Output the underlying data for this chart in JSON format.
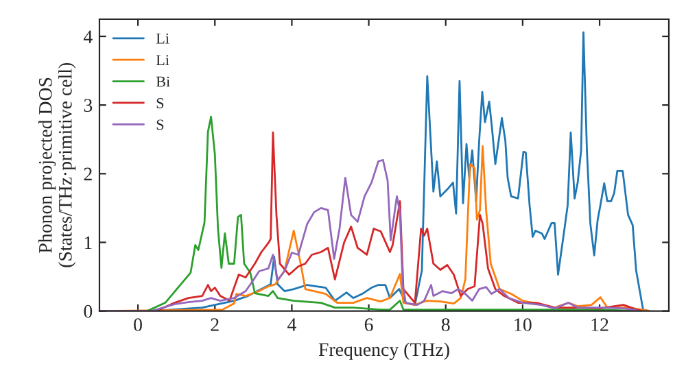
{
  "chart_data": {
    "type": "line",
    "xlabel": "Frequency (THz)",
    "ylabel": "Phonon projected DOS\n(States/THz·primitive cell)",
    "xlim": [
      -1,
      13.8
    ],
    "ylim": [
      0,
      4.25
    ],
    "xticks": [
      0,
      2,
      4,
      6,
      8,
      10,
      12
    ],
    "yticks": [
      0,
      1,
      2,
      3,
      4
    ],
    "legend": "top left",
    "grid": false,
    "series": [
      {
        "name": "Li",
        "color": "#1f77b4",
        "x": [
          -1,
          0.36,
          1.67,
          2.5,
          2.86,
          3.21,
          3.45,
          3.54,
          3.63,
          3.81,
          4.05,
          4.4,
          4.64,
          4.88,
          5.12,
          5.42,
          5.6,
          5.83,
          6.07,
          6.25,
          6.43,
          6.55,
          6.79,
          6.96,
          7.2,
          7.38,
          7.52,
          7.68,
          7.77,
          7.86,
          8.04,
          8.19,
          8.27,
          8.36,
          8.45,
          8.54,
          8.61,
          8.69,
          8.79,
          8.87,
          8.95,
          9.02,
          9.13,
          9.2,
          9.29,
          9.46,
          9.55,
          9.61,
          9.7,
          9.88,
          10.02,
          10.08,
          10.18,
          10.26,
          10.33,
          10.5,
          10.57,
          10.75,
          10.83,
          10.92,
          11.07,
          11.17,
          11.25,
          11.35,
          11.43,
          11.52,
          11.58,
          11.67,
          11.76,
          11.86,
          11.95,
          12.02,
          12.12,
          12.2,
          12.3,
          12.38,
          12.46,
          12.6,
          12.74,
          12.86,
          12.95,
          13.13,
          13.3
        ],
        "values": [
          0,
          0,
          0.05,
          0.15,
          0.22,
          0.32,
          0.39,
          0.79,
          0.39,
          0.29,
          0.32,
          0.38,
          0.36,
          0.34,
          0.15,
          0.27,
          0.19,
          0.25,
          0.34,
          0.38,
          0.38,
          0.19,
          0.32,
          0.12,
          0.09,
          0.59,
          3.42,
          1.74,
          2.18,
          1.67,
          1.77,
          1.87,
          1.42,
          3.35,
          1.57,
          2.43,
          1.94,
          2.34,
          1.6,
          2.48,
          3.19,
          2.75,
          3.05,
          2.68,
          2.14,
          2.81,
          2.48,
          1.94,
          1.67,
          1.64,
          2.32,
          2.31,
          1.54,
          1.08,
          1.17,
          1.13,
          1.05,
          1.28,
          1.28,
          0.53,
          1.13,
          1.54,
          2.6,
          1.64,
          1.87,
          2.34,
          4.06,
          2.34,
          1.27,
          0.81,
          1.33,
          1.54,
          1.86,
          1.6,
          1.6,
          1.72,
          2.04,
          2.04,
          1.4,
          1.25,
          0.59,
          0.02,
          0
        ]
      },
      {
        "name": "Li",
        "color": "#ff7f0e",
        "x": [
          -1,
          2.2,
          2.5,
          2.56,
          2.8,
          3.15,
          3.39,
          3.57,
          3.81,
          4.05,
          4.23,
          4.35,
          4.58,
          4.88,
          5.18,
          5.6,
          5.95,
          6.31,
          6.55,
          6.81,
          6.9,
          7.2,
          7.5,
          7.86,
          8.21,
          8.39,
          8.51,
          8.63,
          8.75,
          8.81,
          8.89,
          8.96,
          9.05,
          9.17,
          9.4,
          9.7,
          10.0,
          10.36,
          10.83,
          11.19,
          11.43,
          11.79,
          12.02,
          12.2,
          12.74,
          13.1,
          13.3
        ],
        "values": [
          0,
          0.02,
          0.11,
          0.25,
          0.22,
          0.29,
          0.36,
          0.39,
          0.59,
          1.17,
          0.69,
          0.32,
          0.29,
          0.25,
          0.12,
          0.12,
          0.19,
          0.14,
          0.19,
          0.54,
          0.12,
          0.09,
          0.15,
          0.14,
          0.11,
          0.19,
          0.46,
          2.14,
          2.08,
          1.33,
          1.47,
          2.4,
          1.47,
          0.69,
          0.32,
          0.25,
          0.15,
          0.11,
          0.05,
          0.12,
          0.07,
          0.09,
          0.2,
          0.05,
          0.05,
          0.02,
          0
        ]
      },
      {
        "name": "Bi",
        "color": "#2ca02c",
        "x": [
          -1,
          0.24,
          0.71,
          1.07,
          1.37,
          1.49,
          1.57,
          1.73,
          1.82,
          1.9,
          2.0,
          2.08,
          2.17,
          2.26,
          2.36,
          2.5,
          2.6,
          2.68,
          2.76,
          2.92,
          3.04,
          3.39,
          3.51,
          3.63,
          4.05,
          4.76,
          5.12,
          5.6,
          6.31,
          6.55,
          6.81,
          6.9,
          8.0,
          10.0,
          12.0,
          13.0
        ],
        "values": [
          0,
          0,
          0.12,
          0.36,
          0.56,
          0.96,
          0.89,
          1.29,
          2.61,
          2.83,
          2.28,
          1.2,
          0.63,
          1.13,
          0.69,
          0.69,
          1.37,
          1.4,
          0.69,
          0.56,
          0.26,
          0.22,
          0.29,
          0.19,
          0.15,
          0.12,
          0.05,
          0.05,
          0.02,
          0.02,
          0.15,
          0.02,
          0.02,
          0.02,
          0.02,
          0
        ]
      },
      {
        "name": "S",
        "color": "#d62728",
        "x": [
          -1,
          0.48,
          0.95,
          1.31,
          1.67,
          1.82,
          1.9,
          2.0,
          2.14,
          2.38,
          2.62,
          2.8,
          3.04,
          3.21,
          3.39,
          3.45,
          3.51,
          3.6,
          3.69,
          3.93,
          4.17,
          4.35,
          4.52,
          4.76,
          4.94,
          5.12,
          5.36,
          5.54,
          5.71,
          5.95,
          6.13,
          6.31,
          6.55,
          6.62,
          6.81,
          6.9,
          7.2,
          7.36,
          7.44,
          7.52,
          7.68,
          7.86,
          8.04,
          8.21,
          8.39,
          8.57,
          8.75,
          8.89,
          8.96,
          9.1,
          9.29,
          9.52,
          9.88,
          10.36,
          10.83,
          11.43,
          12.02,
          12.62,
          12.97,
          13.1
        ],
        "values": [
          0,
          0,
          0.12,
          0.19,
          0.22,
          0.38,
          0.29,
          0.34,
          0.22,
          0.15,
          0.53,
          0.49,
          0.69,
          0.86,
          0.99,
          1.05,
          2.6,
          1.4,
          0.69,
          0.53,
          0.65,
          0.69,
          0.82,
          0.86,
          0.92,
          0.46,
          1.0,
          1.23,
          0.92,
          0.82,
          1.2,
          1.16,
          0.86,
          0.96,
          1.6,
          0.32,
          0.12,
          1.2,
          1.1,
          1.2,
          0.69,
          0.6,
          0.67,
          0.53,
          0.22,
          0.32,
          0.36,
          1.4,
          1.27,
          0.62,
          0.32,
          0.22,
          0.12,
          0.12,
          0.05,
          0.05,
          0.04,
          0.09,
          0.02,
          0
        ]
      },
      {
        "name": "S",
        "color": "#9467bd",
        "x": [
          -1,
          0.36,
          0.95,
          1.31,
          1.67,
          1.9,
          2.14,
          2.5,
          2.8,
          3.0,
          3.15,
          3.39,
          3.51,
          3.63,
          3.81,
          4.0,
          4.17,
          4.4,
          4.58,
          4.76,
          4.94,
          5.1,
          5.24,
          5.39,
          5.54,
          5.71,
          5.89,
          6.07,
          6.25,
          6.37,
          6.49,
          6.57,
          6.73,
          6.81,
          6.88,
          6.96,
          7.26,
          7.44,
          7.62,
          7.68,
          7.92,
          8.15,
          8.33,
          8.51,
          8.69,
          8.87,
          9.05,
          9.19,
          9.4,
          9.64,
          10.0,
          10.48,
          10.83,
          11.19,
          11.43,
          12.02,
          12.6,
          12.9,
          13.0
        ],
        "values": [
          0,
          0,
          0.1,
          0.13,
          0.15,
          0.19,
          0.15,
          0.19,
          0.29,
          0.45,
          0.58,
          0.62,
          0.82,
          0.45,
          0.58,
          0.85,
          0.82,
          1.27,
          1.44,
          1.5,
          1.47,
          0.76,
          1.2,
          1.94,
          1.4,
          1.3,
          1.67,
          1.87,
          2.18,
          2.2,
          1.9,
          1.03,
          1.67,
          1.44,
          0.4,
          0.12,
          0.09,
          0.15,
          0.38,
          0.22,
          0.29,
          0.26,
          0.32,
          0.25,
          0.15,
          0.32,
          0.35,
          0.25,
          0.32,
          0.19,
          0.12,
          0.09,
          0.04,
          0.12,
          0.05,
          0.05,
          0.04,
          0.02,
          0
        ]
      }
    ]
  }
}
